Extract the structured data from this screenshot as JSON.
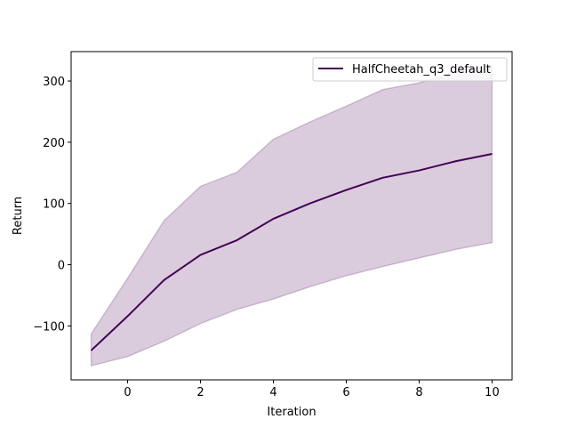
{
  "chart_data": {
    "type": "line",
    "title": "",
    "xlabel": "Iteration",
    "ylabel": "Return",
    "xlim": [
      -1.55,
      10.55
    ],
    "ylim": [
      -188,
      348
    ],
    "xticks": [
      0,
      2,
      4,
      6,
      8,
      10
    ],
    "yticks": [
      -100,
      0,
      100,
      200,
      300
    ],
    "xtick_labels": [
      "0",
      "2",
      "4",
      "6",
      "8",
      "10"
    ],
    "ytick_labels": [
      "−100",
      "0",
      "100",
      "200",
      "300"
    ],
    "grid": false,
    "legend_position": "top-right",
    "series": [
      {
        "name": "HalfCheetah_q3_default",
        "color": "#440154",
        "x": [
          -1,
          0,
          1,
          2,
          3,
          4,
          5,
          6,
          7,
          8,
          9,
          10
        ],
        "y": [
          -140,
          -84,
          -25,
          16,
          40,
          75,
          100,
          122,
          142,
          154,
          169,
          181
        ],
        "upper": [
          -113,
          -22,
          72,
          128,
          151,
          205,
          233,
          259,
          286,
          297,
          315,
          326
        ],
        "lower": [
          -165,
          -150,
          -125,
          -96,
          -73,
          -56,
          -36,
          -18,
          -3,
          11,
          25,
          36
        ],
        "band_color": "#440154",
        "band_opacity": 0.2
      }
    ]
  }
}
